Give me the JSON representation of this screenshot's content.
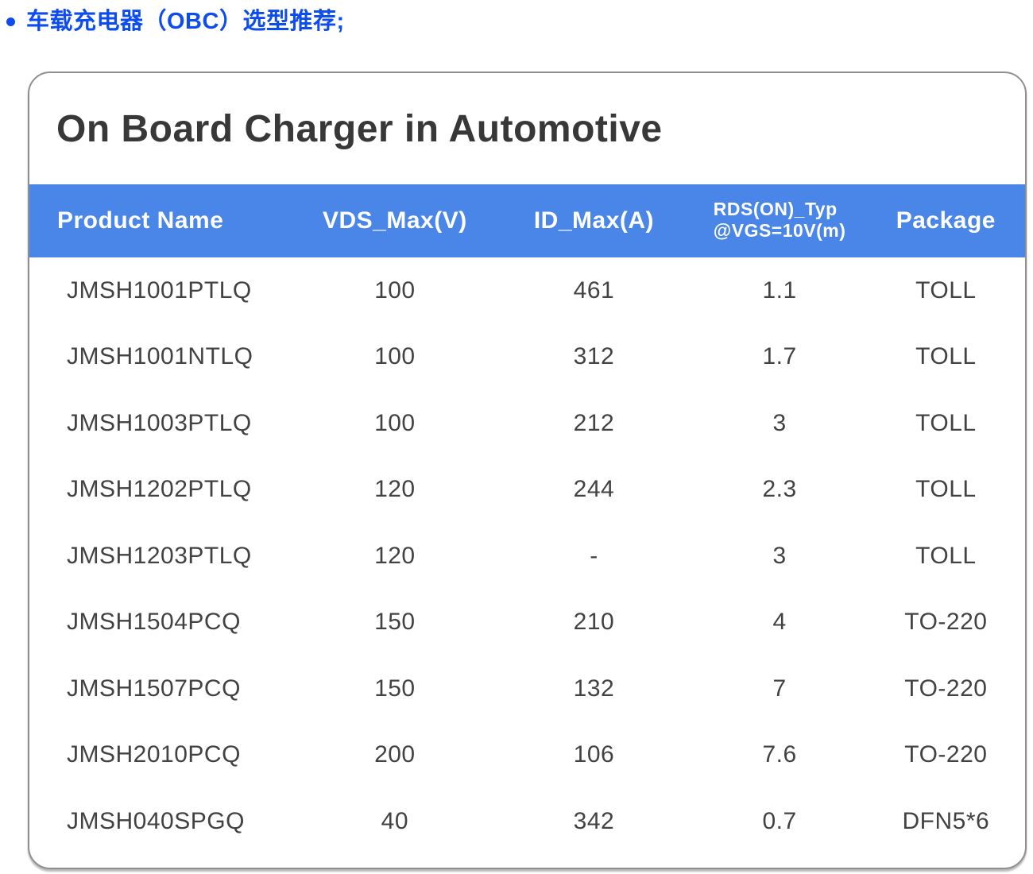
{
  "heading": {
    "text": "车载充电器（OBC）选型推荐;",
    "color": "#0d4df0"
  },
  "card": {
    "title": "On Board Charger in Automotive"
  },
  "table": {
    "header_bg": "#4a86e8",
    "header_text_color": "#ffffff",
    "columns": [
      {
        "label": "Product Name"
      },
      {
        "label": "VDS_Max(V)"
      },
      {
        "label": "ID_Max(A)"
      },
      {
        "line1": "RDS(ON)_Typ",
        "line2": "@VGS=10V(m)"
      },
      {
        "label": "Package"
      }
    ],
    "rows": [
      [
        "JMSH1001PTLQ",
        "100",
        "461",
        "1.1",
        "TOLL"
      ],
      [
        "JMSH1001NTLQ",
        "100",
        "312",
        "1.7",
        "TOLL"
      ],
      [
        "JMSH1003PTLQ",
        "100",
        "212",
        "3",
        "TOLL"
      ],
      [
        "JMSH1202PTLQ",
        "120",
        "244",
        "2.3",
        "TOLL"
      ],
      [
        "JMSH1203PTLQ",
        "120",
        "-",
        "3",
        "TOLL"
      ],
      [
        "JMSH1504PCQ",
        "150",
        "210",
        "4",
        "TO-220"
      ],
      [
        "JMSH1507PCQ",
        "150",
        "132",
        "7",
        "TO-220"
      ],
      [
        "JMSH2010PCQ",
        "200",
        "106",
        "7.6",
        "TO-220"
      ],
      [
        "JMSH040SPGQ",
        "40",
        "342",
        "0.7",
        "DFN5*6"
      ]
    ]
  }
}
